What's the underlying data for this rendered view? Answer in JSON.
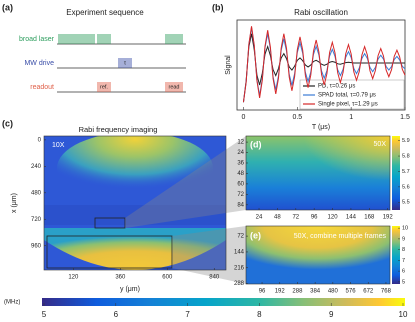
{
  "sequence": {
    "label": "(a)",
    "title": "Experiment sequence",
    "rows": [
      {
        "name": "broad laser",
        "color": "#2e9e5e"
      },
      {
        "name": "MW drive",
        "color": "#3a4ea8"
      },
      {
        "name": "readout",
        "color": "#e0604a"
      }
    ],
    "pulses": [
      "τ",
      "ref.",
      "read"
    ]
  },
  "chart_data": {
    "type": "line",
    "label": "(b)",
    "title": "Rabi oscillation",
    "xlabel": "T (μs)",
    "ylabel": "Signal",
    "x": [
      0,
      0.025,
      0.05,
      0.075,
      0.1,
      0.125,
      0.15,
      0.175,
      0.2,
      0.225,
      0.25,
      0.275,
      0.3,
      0.325,
      0.35,
      0.375,
      0.4,
      0.425,
      0.45,
      0.475,
      0.5,
      0.525,
      0.55,
      0.575,
      0.6,
      0.625,
      0.65,
      0.675,
      0.7,
      0.725,
      0.75,
      0.775,
      0.8,
      0.825,
      0.85,
      0.875,
      0.9,
      0.925,
      0.95,
      0.975,
      1,
      1.025,
      1.05,
      1.075,
      1.1,
      1.125,
      1.15,
      1.175,
      1.2,
      1.225,
      1.25,
      1.275,
      1.3,
      1.325,
      1.35,
      1.375,
      1.4,
      1.425,
      1.45,
      1.475,
      1.5
    ],
    "series": [
      {
        "name": "PD, τ=0.26 μs",
        "color": "#222222",
        "values": [
          -1,
          -0.45,
          0.41,
          0.75,
          0.34,
          -0.31,
          -0.56,
          -0.26,
          0.23,
          0.42,
          0.19,
          -0.17,
          -0.32,
          -0.14,
          0.13,
          0.24,
          0.11,
          -0.1,
          -0.18,
          -0.08,
          0.07,
          0.13,
          0.06,
          -0.05,
          -0.1,
          -0.05,
          0.04,
          0.07,
          0.03,
          -0.03,
          -0.06,
          -0.03,
          0.02,
          0.04,
          0.02,
          -0.02,
          -0.03,
          -0.01,
          0.01,
          0.02,
          0.01,
          0,
          0,
          0,
          0,
          0,
          0,
          0,
          0,
          0,
          0,
          0,
          0,
          0,
          0,
          0,
          0,
          0,
          0,
          0,
          0
        ]
      },
      {
        "name": "SPAD total, τ=0.79 μs",
        "color": "#3a7bd5",
        "values": [
          -1,
          -0.48,
          0.47,
          0.91,
          0.44,
          -0.43,
          -0.83,
          -0.4,
          0.39,
          0.75,
          0.36,
          -0.35,
          -0.68,
          -0.33,
          0.32,
          0.62,
          0.3,
          -0.29,
          -0.57,
          -0.27,
          0.27,
          0.52,
          0.25,
          -0.24,
          -0.47,
          -0.23,
          0.22,
          0.43,
          0.21,
          -0.2,
          -0.39,
          -0.19,
          0.18,
          0.35,
          0.17,
          -0.17,
          -0.32,
          -0.16,
          0.15,
          0.29,
          0.14,
          -0.14,
          -0.27,
          -0.13,
          0.12,
          0.24,
          0.12,
          -0.11,
          -0.22,
          -0.11,
          0.1,
          0.2,
          0.1,
          -0.09,
          -0.18,
          -0.09,
          0.09,
          0.17,
          0.08,
          -0.08,
          -0.15
        ]
      },
      {
        "name": "Single pixel, τ=1.29 μs",
        "color": "#d62728",
        "values": [
          -1,
          -0.49,
          0.48,
          0.94,
          0.46,
          -0.45,
          -0.89,
          -0.44,
          0.43,
          0.84,
          0.41,
          -0.4,
          -0.79,
          -0.39,
          0.38,
          0.75,
          0.37,
          -0.36,
          -0.71,
          -0.35,
          0.34,
          0.67,
          0.33,
          -0.32,
          -0.63,
          -0.31,
          0.3,
          0.59,
          0.29,
          -0.29,
          -0.56,
          -0.27,
          0.27,
          0.53,
          0.26,
          -0.25,
          -0.5,
          -0.24,
          0.24,
          0.47,
          0.23,
          -0.23,
          -0.44,
          -0.22,
          0.21,
          0.42,
          0.21,
          -0.2,
          -0.4,
          -0.19,
          0.19,
          0.37,
          0.18,
          -0.18,
          -0.35,
          -0.17,
          0.17,
          0.33,
          0.16,
          -0.16,
          -0.31
        ]
      }
    ],
    "xlim": [
      -0.06,
      1.5
    ],
    "xticks": [
      0,
      0.5,
      1,
      1.5
    ],
    "ylim": [
      -1.2,
      1.1
    ]
  },
  "imaging": {
    "label": "(c)",
    "title": "Rabi frequency imaging",
    "magnification": "10X",
    "xlabel": "y (μm)",
    "ylabel": "x (μm)",
    "xlim": [
      -30,
      900
    ],
    "xticks": [
      120,
      360,
      600,
      840
    ],
    "ylim": [
      -35,
      1180
    ],
    "yticks": [
      0,
      240,
      480,
      720,
      960
    ],
    "colorbar": {
      "unit": "(MHz)",
      "lim": [
        5,
        10
      ],
      "ticks": [
        5,
        6,
        7,
        8,
        9,
        10
      ]
    }
  },
  "zoom_d": {
    "label": "(d)",
    "magnification": "50X",
    "xlim": [
      7,
      195
    ],
    "xticks": [
      24,
      48,
      72,
      96,
      120,
      144,
      168,
      192
    ],
    "ylim": [
      5,
      90
    ],
    "yticks": [
      12,
      24,
      36,
      48,
      60,
      72,
      84
    ],
    "colorbar": {
      "lim": [
        5.45,
        5.93
      ],
      "ticks": [
        5.5,
        5.6,
        5.7,
        5.8,
        5.9
      ]
    }
  },
  "zoom_e": {
    "label": "(e)",
    "magnification": "50X, combine multiple frames",
    "xlim": [
      9,
      790
    ],
    "xticks": [
      96,
      192,
      288,
      384,
      480,
      576,
      672,
      768
    ],
    "ylim": [
      26,
      290
    ],
    "yticks": [
      72,
      144,
      216,
      288
    ],
    "colorbar": {
      "lim": [
        4.8,
        10.2
      ],
      "ticks": [
        5,
        6,
        7,
        8,
        9,
        10
      ]
    }
  }
}
